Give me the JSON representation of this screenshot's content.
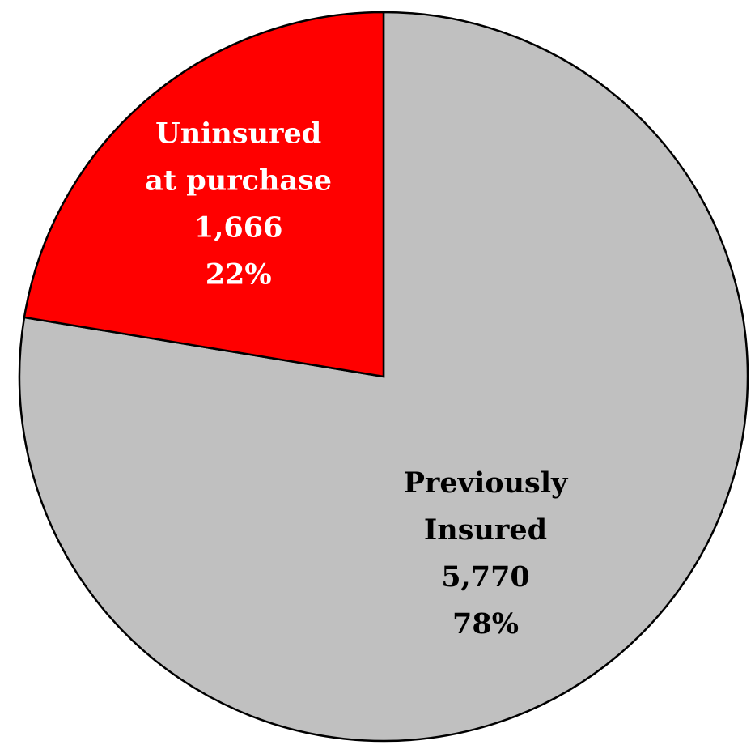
{
  "chart_data": {
    "type": "pie",
    "title": "",
    "slices": [
      {
        "label_lines": [
          "Previously",
          "Insured"
        ],
        "value": 5770,
        "value_label": "5,770",
        "percent_label": "78%",
        "color": "#c0c0c0",
        "text_color": "#000000"
      },
      {
        "label_lines": [
          "Uninsured",
          "at purchase"
        ],
        "value": 1666,
        "value_label": "1,666",
        "percent_label": "22%",
        "color": "#ff0000",
        "text_color": "#ffffff"
      }
    ],
    "start_angle_deg": 0,
    "direction": "clockwise",
    "legend": "none",
    "outline_color": "#000000"
  }
}
